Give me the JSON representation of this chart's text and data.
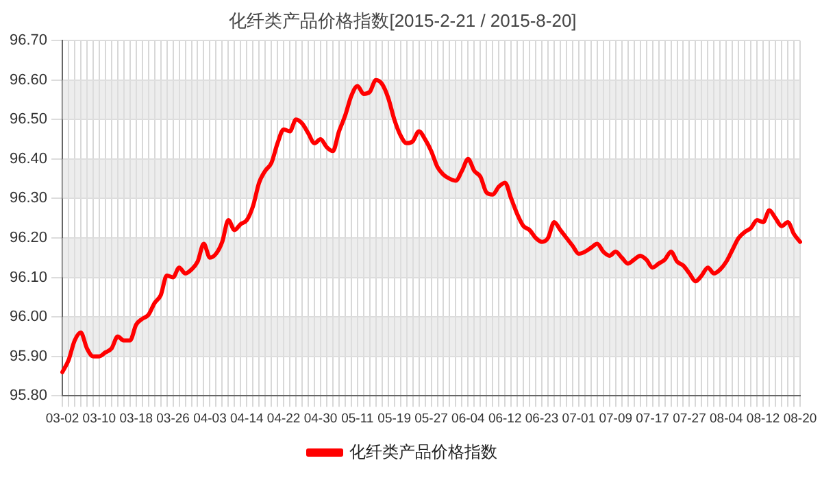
{
  "chart_data": {
    "type": "line",
    "title": "化纤类产品价格指数[2015-2-21 / 2015-8-20]",
    "categories": [
      "03-02",
      null,
      null,
      null,
      null,
      null,
      "03-10",
      null,
      null,
      null,
      null,
      null,
      "03-18",
      null,
      null,
      null,
      null,
      null,
      "03-26",
      null,
      null,
      null,
      null,
      null,
      "04-03",
      null,
      null,
      null,
      null,
      null,
      "04-14",
      null,
      null,
      null,
      null,
      null,
      "04-22",
      null,
      null,
      null,
      null,
      null,
      "04-30",
      null,
      null,
      null,
      null,
      null,
      "05-11",
      null,
      null,
      null,
      null,
      null,
      "05-19",
      null,
      null,
      null,
      null,
      null,
      "05-27",
      null,
      null,
      null,
      null,
      null,
      "06-04",
      null,
      null,
      null,
      null,
      null,
      "06-12",
      null,
      null,
      null,
      null,
      null,
      "06-23",
      null,
      null,
      null,
      null,
      null,
      "07-01",
      null,
      null,
      null,
      null,
      null,
      "07-09",
      null,
      null,
      null,
      null,
      null,
      "07-17",
      null,
      null,
      null,
      null,
      null,
      "07-27",
      null,
      null,
      null,
      null,
      null,
      "08-04",
      null,
      null,
      null,
      null,
      null,
      "08-12",
      null,
      null,
      null,
      null,
      null,
      "08-20"
    ],
    "series": [
      {
        "name": "化纤类产品价格指数",
        "color": "#ff0000",
        "values": [
          95.86,
          95.89,
          95.94,
          95.96,
          95.92,
          95.9,
          95.9,
          95.91,
          95.92,
          95.95,
          95.94,
          95.94,
          95.98,
          95.995,
          96.005,
          96.035,
          96.055,
          96.105,
          96.1,
          96.125,
          96.11,
          96.12,
          96.14,
          96.185,
          96.15,
          96.16,
          96.19,
          96.245,
          96.22,
          96.235,
          96.245,
          96.28,
          96.34,
          96.37,
          96.39,
          96.44,
          96.475,
          96.47,
          96.5,
          96.49,
          96.465,
          96.44,
          96.45,
          96.43,
          96.42,
          96.47,
          96.51,
          96.56,
          96.585,
          96.565,
          96.57,
          96.6,
          96.59,
          96.555,
          96.5,
          96.46,
          96.44,
          96.445,
          96.47,
          96.45,
          96.42,
          96.38,
          96.36,
          96.35,
          96.345,
          96.37,
          96.4,
          96.37,
          96.355,
          96.315,
          96.31,
          96.33,
          96.34,
          96.3,
          96.26,
          96.23,
          96.22,
          96.2,
          96.19,
          96.2,
          96.24,
          96.22,
          96.2,
          96.18,
          96.16,
          96.165,
          96.175,
          96.185,
          96.165,
          96.155,
          96.165,
          96.15,
          96.135,
          96.145,
          96.155,
          96.145,
          96.125,
          96.135,
          96.145,
          96.165,
          96.14,
          96.13,
          96.11,
          96.09,
          96.105,
          96.125,
          96.11,
          96.12,
          96.14,
          96.17,
          96.2,
          96.215,
          96.225,
          96.245,
          96.24,
          96.27,
          96.25,
          96.23,
          96.24,
          96.21,
          96.19
        ]
      }
    ],
    "ylim": [
      95.8,
      96.7
    ],
    "yticks": [
      {
        "value": 95.8,
        "label": "95.80"
      },
      {
        "value": 95.9,
        "label": "95.90"
      },
      {
        "value": 96.0,
        "label": "96.00"
      },
      {
        "value": 96.1,
        "label": "96.10"
      },
      {
        "value": 96.2,
        "label": "96.20"
      },
      {
        "value": 96.3,
        "label": "96.30"
      },
      {
        "value": 96.4,
        "label": "96.40"
      },
      {
        "value": 96.5,
        "label": "96.50"
      },
      {
        "value": 96.6,
        "label": "96.60"
      },
      {
        "value": 96.7,
        "label": "96.70"
      }
    ],
    "grid": true,
    "legend": "bottom",
    "marker": "none",
    "line_style": "solid"
  }
}
